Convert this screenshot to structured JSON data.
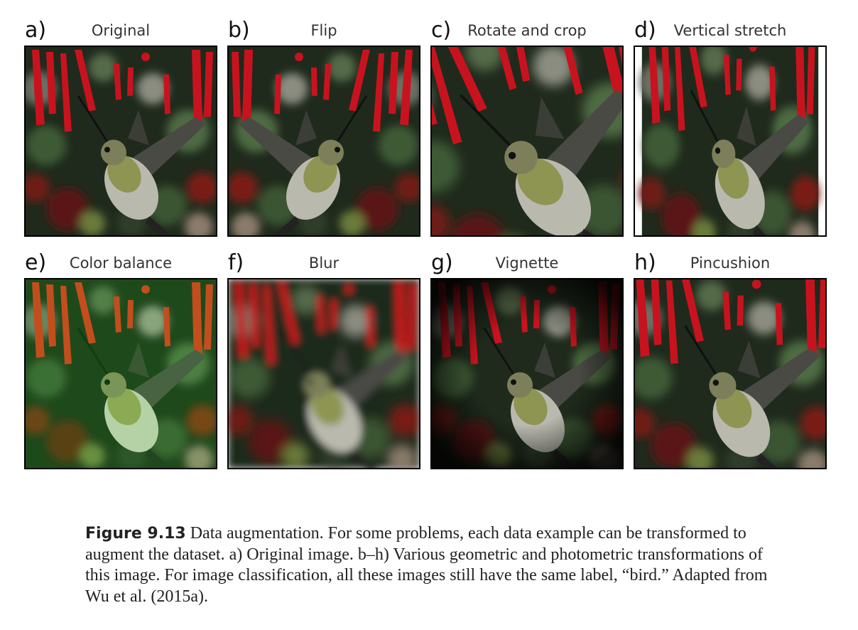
{
  "figure": {
    "panels": [
      {
        "letter": "a)",
        "title": "Original"
      },
      {
        "letter": "b)",
        "title": "Flip"
      },
      {
        "letter": "c)",
        "title": "Rotate and crop"
      },
      {
        "letter": "d)",
        "title": "Vertical stretch"
      },
      {
        "letter": "e)",
        "title": "Color balance"
      },
      {
        "letter": "f)",
        "title": "Blur"
      },
      {
        "letter": "g)",
        "title": "Vignette"
      },
      {
        "letter": "h)",
        "title": "Pincushion"
      }
    ],
    "caption": {
      "label": "Figure 9.13",
      "text": "Data augmentation. For some problems, each data example can be transformed to augment the dataset. a) Original image. b–h) Various geometric and photometric transformations of this image. For image classification, all these images still have the same label, “bird.” Adapted from Wu et al. (2015a)."
    }
  }
}
